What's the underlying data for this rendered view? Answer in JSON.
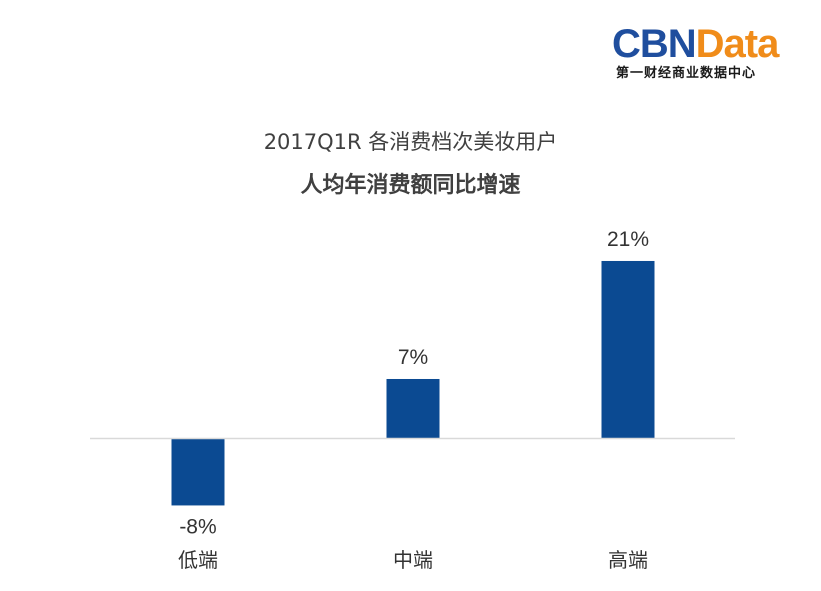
{
  "logo": {
    "part1": "CBN",
    "part2": "Data",
    "tagline": "第一财经商业数据中心",
    "colors": {
      "part1": "#1f4e9e",
      "part2": "#f08c1a"
    }
  },
  "chart_data": {
    "type": "bar",
    "title": "2017Q1R 各消费档次美妆用户",
    "subtitle": "人均年消费额同比增速",
    "categories": [
      "低端",
      "中端",
      "高端"
    ],
    "values": [
      -8,
      7,
      21
    ],
    "value_labels": [
      "-8%",
      "7%",
      "21%"
    ],
    "unit": "%",
    "ylim": [
      -10,
      25
    ],
    "grid": false,
    "legend": "none",
    "bar_color": "#0b4a92",
    "axis_color": "#d9d9d9"
  }
}
